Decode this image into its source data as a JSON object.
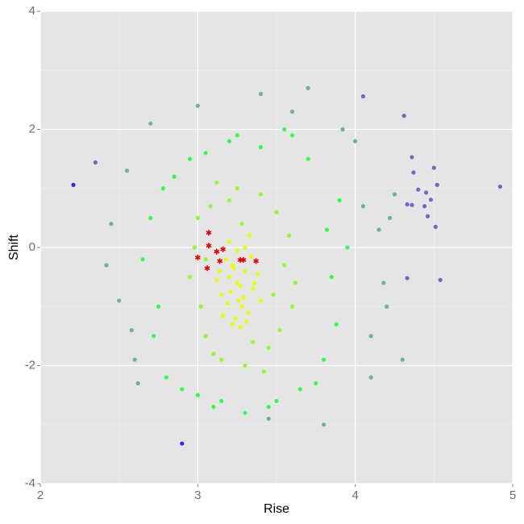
{
  "chart_data": {
    "type": "scatter",
    "x_label": "Rise",
    "y_label": "Shift",
    "xlim": [
      2,
      5
    ],
    "ylim": [
      -4,
      4
    ],
    "xticks": [
      2,
      3,
      4,
      5
    ],
    "yticks": [
      -4,
      -2,
      0,
      2,
      4
    ],
    "grid": true,
    "series": [
      {
        "color": "#6ab394",
        "marker": "circle",
        "x": [
          2.45,
          2.5,
          2.55,
          2.62,
          2.6,
          4.05,
          4.1,
          4.15,
          4.2,
          4.0,
          4.25,
          3.0,
          3.4,
          3.7,
          3.6,
          2.42,
          4.1,
          4.3,
          2.58,
          3.8,
          3.45,
          4.22,
          2.7,
          4.18,
          3.92
        ],
        "y": [
          0.4,
          -0.9,
          1.3,
          -2.3,
          -1.9,
          0.7,
          -1.5,
          0.3,
          -1.0,
          1.8,
          0.9,
          2.4,
          2.6,
          2.7,
          2.3,
          -0.3,
          -2.2,
          -1.9,
          -1.4,
          -3.0,
          -2.9,
          0.5,
          2.1,
          -0.6,
          2.0
        ]
      },
      {
        "color": "#33ff4d",
        "marker": "circle",
        "x": [
          2.7,
          2.75,
          2.8,
          3.85,
          3.9,
          3.8,
          2.85,
          3.7,
          3.0,
          3.5,
          3.2,
          3.4,
          2.9,
          3.75,
          2.65,
          3.95,
          3.1,
          3.6,
          3.3,
          2.78,
          3.88,
          3.05,
          3.55,
          2.72,
          3.82,
          3.15,
          3.45,
          2.95,
          3.65,
          3.25
        ],
        "y": [
          0.5,
          -1.0,
          -2.2,
          -0.5,
          0.8,
          -1.9,
          1.2,
          1.5,
          -2.5,
          -2.6,
          1.8,
          1.7,
          -2.4,
          -2.3,
          -0.2,
          0.0,
          -2.7,
          1.9,
          -2.8,
          1.0,
          -1.3,
          1.6,
          2.0,
          -1.5,
          0.3,
          -2.6,
          -2.7,
          1.5,
          -2.4,
          1.9
        ]
      },
      {
        "color": "#8cff2e",
        "marker": "circle",
        "x": [
          2.95,
          3.0,
          3.05,
          3.55,
          3.6,
          3.5,
          3.1,
          3.45,
          3.2,
          3.3,
          3.02,
          3.58,
          3.08,
          3.48,
          3.25,
          3.4,
          3.15,
          3.52,
          2.98,
          3.62,
          3.12,
          3.42,
          3.35,
          3.05,
          3.28
        ],
        "y": [
          -0.5,
          0.5,
          -1.5,
          -0.3,
          -1.0,
          0.6,
          -1.8,
          -1.7,
          0.8,
          -2.0,
          -1.0,
          0.2,
          0.7,
          -0.8,
          1.0,
          0.9,
          -1.9,
          -1.4,
          0.0,
          -0.6,
          1.1,
          -2.1,
          -1.6,
          -0.2,
          0.4
        ]
      },
      {
        "color": "#e8ff00",
        "marker": "circle",
        "x": [
          3.2,
          3.25,
          3.3,
          3.15,
          3.35,
          3.22,
          3.28,
          3.18,
          3.32,
          3.26,
          3.12,
          3.38,
          3.24,
          3.3,
          3.2,
          3.27,
          3.16,
          3.34,
          3.23,
          3.29,
          3.21,
          3.31,
          3.19,
          3.36,
          3.25,
          3.14,
          3.4,
          3.27,
          3.22,
          3.33
        ],
        "y": [
          -0.5,
          -0.6,
          -0.4,
          -0.8,
          -0.7,
          -0.3,
          -1.0,
          -0.2,
          -1.1,
          -0.9,
          -0.55,
          -0.45,
          -1.2,
          0.0,
          0.1,
          -0.65,
          -1.15,
          -0.15,
          -0.35,
          -0.85,
          -0.75,
          -1.25,
          -0.95,
          -0.6,
          -0.05,
          -0.4,
          -0.9,
          -1.35,
          -1.3,
          0.2
        ]
      },
      {
        "color": "#6a6ac8",
        "marker": "circle",
        "x": [
          4.92,
          4.54,
          4.51,
          4.31,
          4.05,
          4.5,
          4.36,
          4.37,
          4.4,
          4.44,
          4.36,
          4.33,
          4.48,
          4.33,
          4.45,
          4.46,
          4.52,
          2.35
        ],
        "y": [
          1.03,
          -0.55,
          0.35,
          2.23,
          2.56,
          1.35,
          1.53,
          1.27,
          0.98,
          0.7,
          0.72,
          0.73,
          0.81,
          -0.52,
          0.93,
          0.53,
          1.06,
          1.44
        ]
      },
      {
        "color": "#4b1aff",
        "marker": "circle",
        "x": [
          2.21,
          2.9
        ],
        "y": [
          1.06,
          -3.32
        ]
      },
      {
        "color": "#e00000",
        "marker": "star",
        "x": [
          3.0,
          3.07,
          3.07,
          3.06,
          3.12,
          3.16,
          3.14,
          3.27,
          3.29,
          3.37
        ],
        "y": [
          -0.17,
          0.25,
          0.03,
          -0.35,
          -0.07,
          -0.03,
          -0.23,
          -0.21,
          -0.21,
          -0.23
        ]
      }
    ]
  }
}
